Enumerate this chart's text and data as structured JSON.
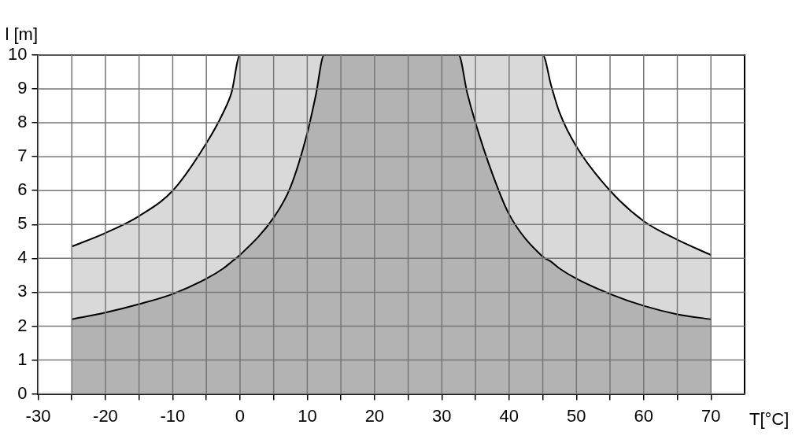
{
  "chart_data": {
    "type": "area",
    "xlabel": "T[°C]",
    "ylabel": "l [m]",
    "xlim": [
      -30,
      75
    ],
    "xticks": [
      -30,
      {
        "value": -25,
        "label": null
      },
      -20,
      {
        "value": -15,
        "label": null
      },
      -10,
      {
        "value": -5,
        "label": null
      },
      0,
      {
        "value": 5,
        "label": null
      },
      10,
      {
        "value": 15,
        "label": null
      },
      20,
      {
        "value": 25,
        "label": null
      },
      30,
      {
        "value": 35,
        "label": null
      },
      40,
      {
        "value": 45,
        "label": null
      },
      50,
      {
        "value": 55,
        "label": null
      },
      60,
      {
        "value": 65,
        "label": null
      },
      70
    ],
    "stacked": true,
    "x": [
      -25,
      -20,
      -15,
      -10,
      -5,
      -2.5,
      -1.25,
      0,
      5,
      7.5,
      10,
      11.25,
      12.5,
      32.5,
      33.75,
      35,
      37.5,
      40,
      45,
      46.25,
      47.5,
      50,
      55,
      60,
      65,
      70
    ],
    "ylim": [
      0,
      10
    ],
    "yticks": [
      0,
      1,
      2,
      3,
      4,
      5,
      6,
      7,
      8,
      9,
      10
    ],
    "grid": true,
    "series": [
      {
        "color": "#b3b3b3",
        "values": [
          2.2,
          2.4,
          2.65,
          2.95,
          3.4,
          3.7,
          3.9,
          4.1,
          5.2,
          6.1,
          7.7,
          8.8,
          10,
          10,
          8.9,
          8.0,
          6.5,
          5.3,
          4.05,
          3.9,
          3.7,
          3.4,
          2.95,
          2.6,
          2.35,
          2.2
        ]
      },
      {
        "color": "#d9d9d9",
        "values": [
          2.15,
          2.35,
          2.6,
          3.05,
          4.0,
          4.6,
          5.0,
          5.9,
          4.8,
          3.9,
          2.3,
          1.2,
          0,
          0,
          1.1,
          2.0,
          3.5,
          4.7,
          5.95,
          5.2,
          4.6,
          3.9,
          3.05,
          2.5,
          2.2,
          1.9
        ]
      }
    ]
  }
}
